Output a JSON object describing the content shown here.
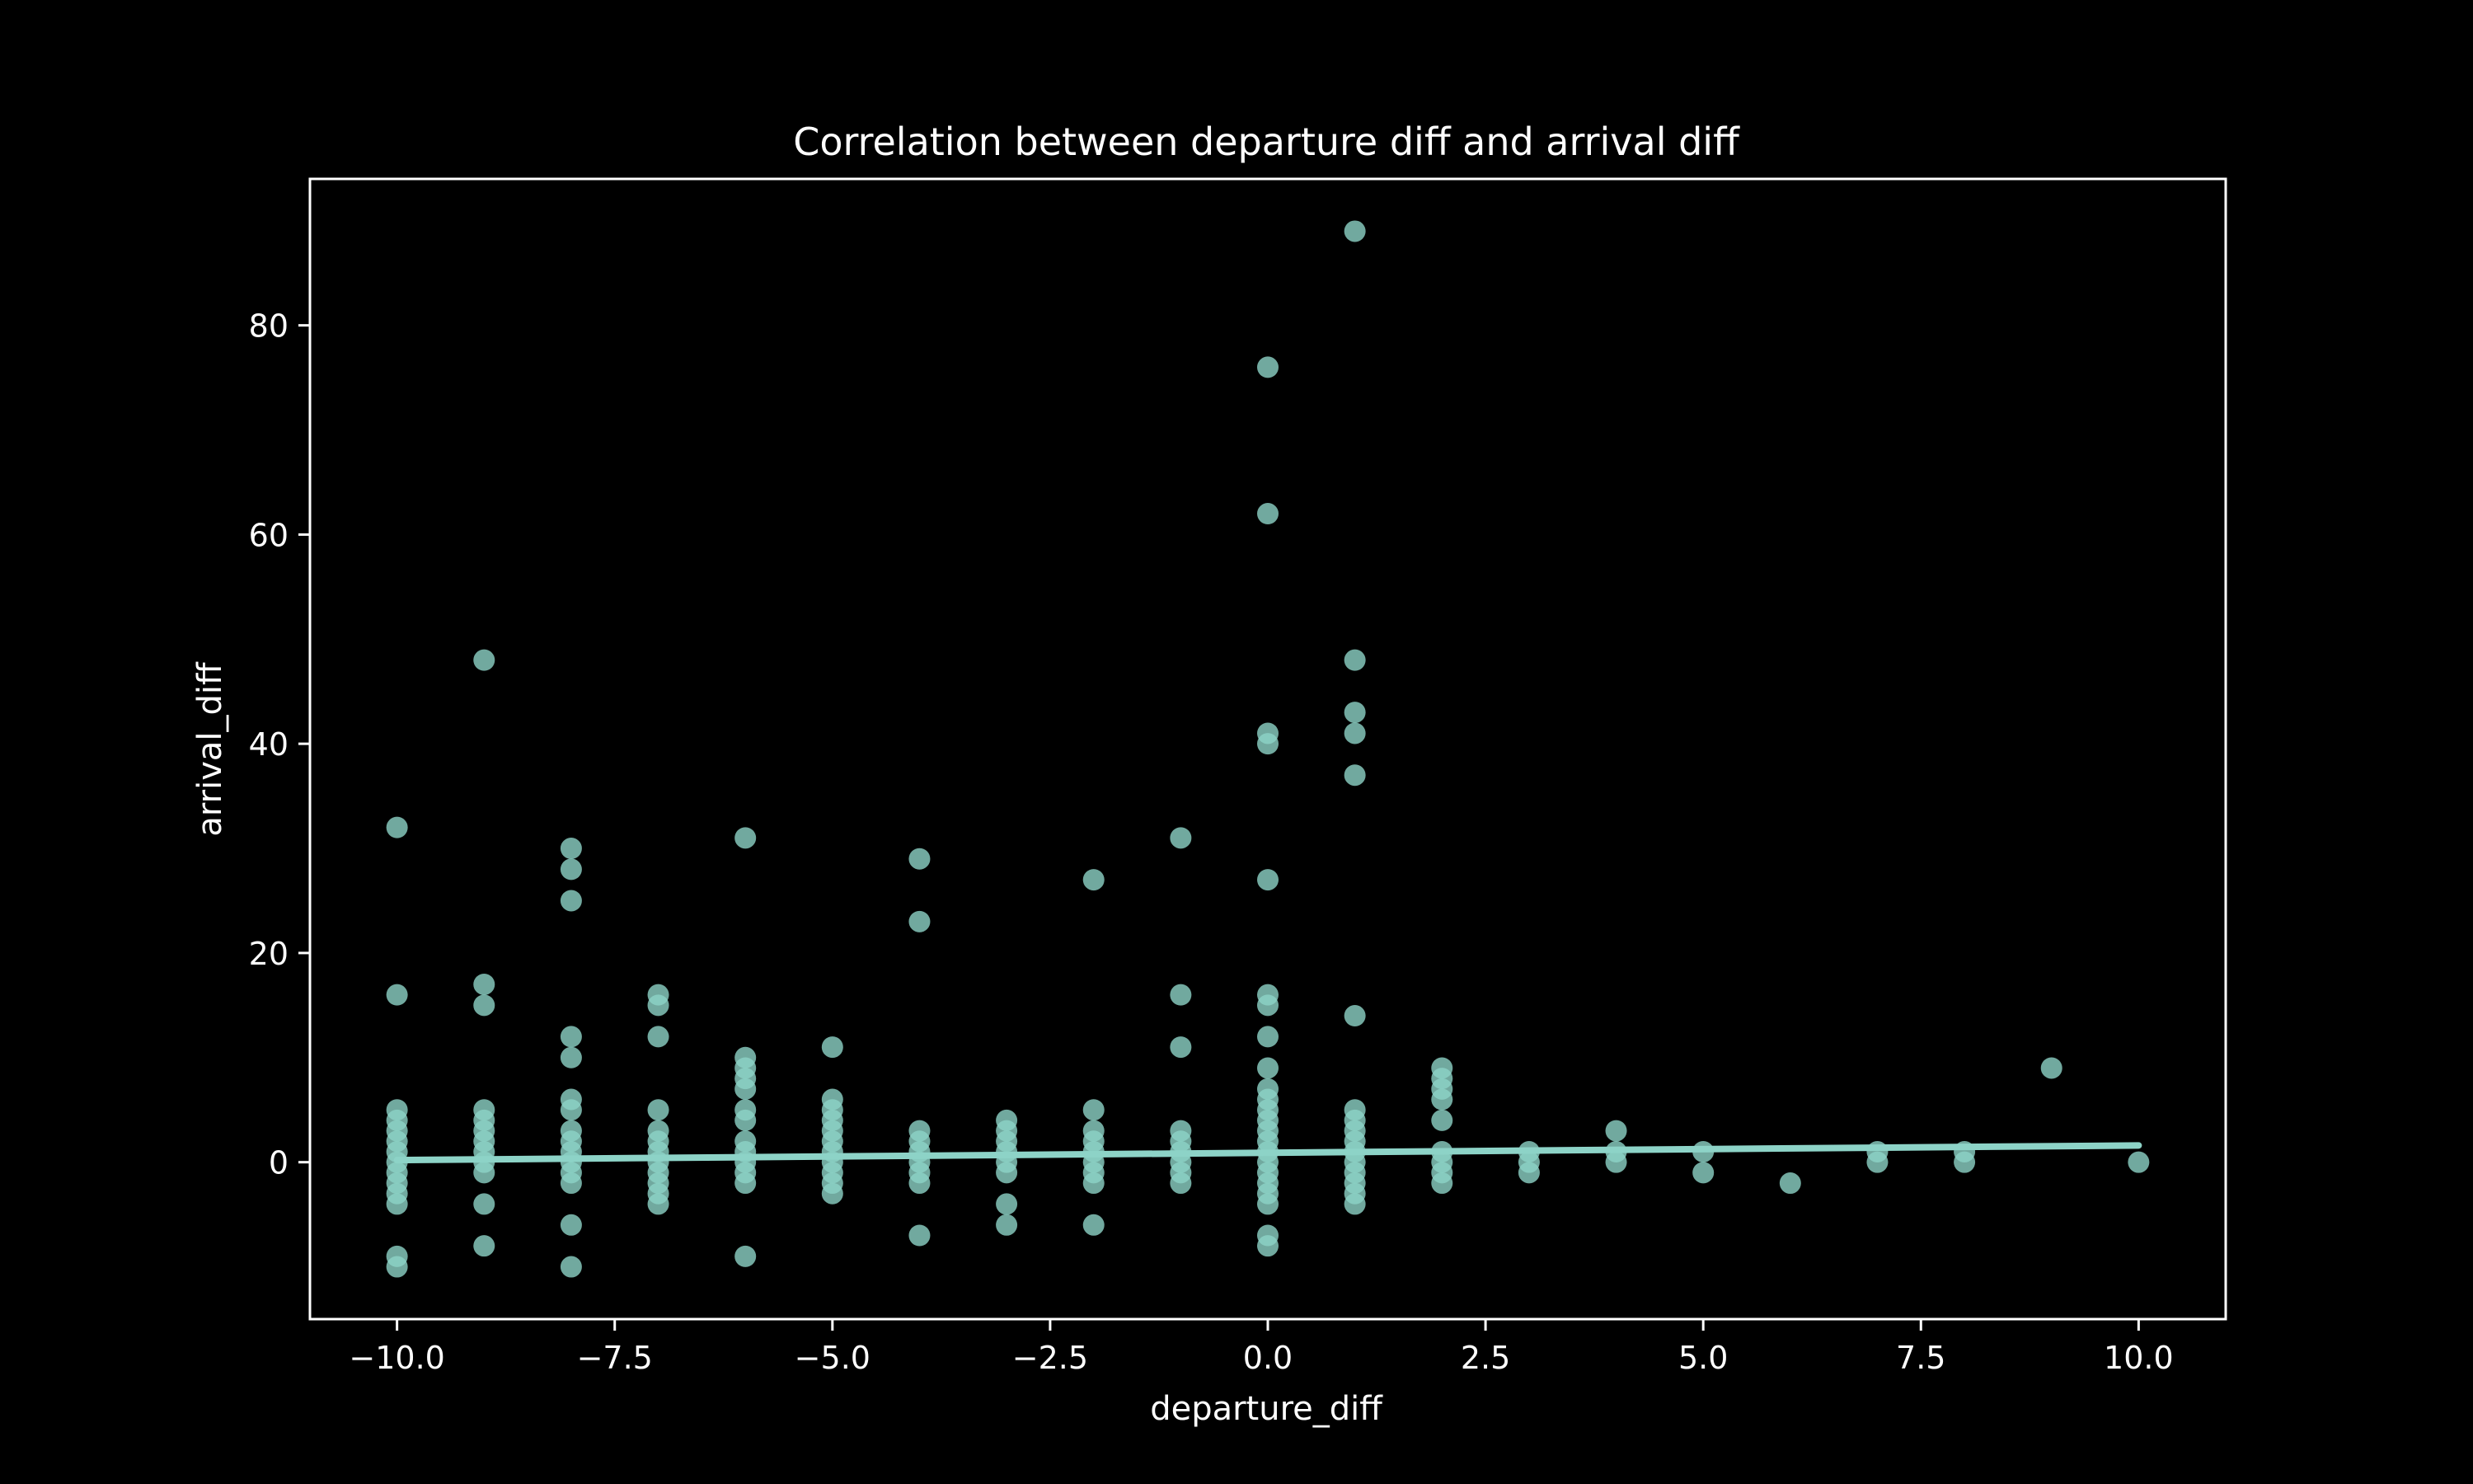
{
  "chart_data": {
    "type": "scatter",
    "title": "Correlation between departure diff and arrival diff",
    "xlabel": "departure_diff",
    "ylabel": "arrival_diff",
    "xlim": [
      -11,
      11
    ],
    "ylim": [
      -15,
      94
    ],
    "x_ticks": [
      -10.0,
      -7.5,
      -5.0,
      -2.5,
      0.0,
      2.5,
      5.0,
      7.5,
      10.0
    ],
    "x_tick_labels": [
      "−10.0",
      "−7.5",
      "−5.0",
      "−2.5",
      "0.0",
      "2.5",
      "5.0",
      "7.5",
      "10.0"
    ],
    "y_ticks": [
      0,
      20,
      40,
      60,
      80
    ],
    "y_tick_labels": [
      "0",
      "20",
      "40",
      "60",
      "80"
    ],
    "grid": false,
    "colors": {
      "background": "#000000",
      "axes": "#ffffff",
      "text": "#ffffff",
      "points": "#8dd3c7",
      "regression_line": "#8dd3c7"
    },
    "regression_line": {
      "x": [
        -10,
        10
      ],
      "y": [
        0.2,
        1.6
      ]
    },
    "points": [
      [
        -10,
        32
      ],
      [
        -10,
        16
      ],
      [
        -10,
        5
      ],
      [
        -10,
        4
      ],
      [
        -10,
        3
      ],
      [
        -10,
        2
      ],
      [
        -10,
        1
      ],
      [
        -10,
        0
      ],
      [
        -10,
        -1
      ],
      [
        -10,
        -2
      ],
      [
        -10,
        -3
      ],
      [
        -10,
        -4
      ],
      [
        -10,
        -9
      ],
      [
        -10,
        -10
      ],
      [
        -9,
        48
      ],
      [
        -9,
        17
      ],
      [
        -9,
        15
      ],
      [
        -9,
        5
      ],
      [
        -9,
        4
      ],
      [
        -9,
        3
      ],
      [
        -9,
        2
      ],
      [
        -9,
        1
      ],
      [
        -9,
        0
      ],
      [
        -9,
        -1
      ],
      [
        -9,
        -4
      ],
      [
        -9,
        -8
      ],
      [
        -8,
        30
      ],
      [
        -8,
        28
      ],
      [
        -8,
        25
      ],
      [
        -8,
        12
      ],
      [
        -8,
        10
      ],
      [
        -8,
        6
      ],
      [
        -8,
        5
      ],
      [
        -8,
        3
      ],
      [
        -8,
        2
      ],
      [
        -8,
        1
      ],
      [
        -8,
        0
      ],
      [
        -8,
        -1
      ],
      [
        -8,
        -2
      ],
      [
        -8,
        -6
      ],
      [
        -8,
        -10
      ],
      [
        -7,
        16
      ],
      [
        -7,
        15
      ],
      [
        -7,
        12
      ],
      [
        -7,
        5
      ],
      [
        -7,
        3
      ],
      [
        -7,
        2
      ],
      [
        -7,
        1
      ],
      [
        -7,
        0
      ],
      [
        -7,
        -1
      ],
      [
        -7,
        -2
      ],
      [
        -7,
        -3
      ],
      [
        -7,
        -4
      ],
      [
        -6,
        31
      ],
      [
        -6,
        10
      ],
      [
        -6,
        9
      ],
      [
        -6,
        8
      ],
      [
        -6,
        7
      ],
      [
        -6,
        5
      ],
      [
        -6,
        4
      ],
      [
        -6,
        2
      ],
      [
        -6,
        1
      ],
      [
        -6,
        0
      ],
      [
        -6,
        -1
      ],
      [
        -6,
        -2
      ],
      [
        -6,
        -9
      ],
      [
        -5,
        11
      ],
      [
        -5,
        6
      ],
      [
        -5,
        5
      ],
      [
        -5,
        4
      ],
      [
        -5,
        3
      ],
      [
        -5,
        2
      ],
      [
        -5,
        1
      ],
      [
        -5,
        0
      ],
      [
        -5,
        -1
      ],
      [
        -5,
        -2
      ],
      [
        -5,
        -3
      ],
      [
        -4,
        29
      ],
      [
        -4,
        23
      ],
      [
        -4,
        3
      ],
      [
        -4,
        2
      ],
      [
        -4,
        1
      ],
      [
        -4,
        0
      ],
      [
        -4,
        -1
      ],
      [
        -4,
        -2
      ],
      [
        -4,
        -7
      ],
      [
        -3,
        4
      ],
      [
        -3,
        3
      ],
      [
        -3,
        2
      ],
      [
        -3,
        1
      ],
      [
        -3,
        0
      ],
      [
        -3,
        -1
      ],
      [
        -3,
        -4
      ],
      [
        -3,
        -6
      ],
      [
        -2,
        27
      ],
      [
        -2,
        5
      ],
      [
        -2,
        3
      ],
      [
        -2,
        2
      ],
      [
        -2,
        1
      ],
      [
        -2,
        0
      ],
      [
        -2,
        -1
      ],
      [
        -2,
        -2
      ],
      [
        -2,
        -6
      ],
      [
        -1,
        31
      ],
      [
        -1,
        16
      ],
      [
        -1,
        11
      ],
      [
        -1,
        3
      ],
      [
        -1,
        2
      ],
      [
        -1,
        1
      ],
      [
        -1,
        0
      ],
      [
        -1,
        -1
      ],
      [
        -1,
        -2
      ],
      [
        0,
        76
      ],
      [
        0,
        62
      ],
      [
        0,
        41
      ],
      [
        0,
        40
      ],
      [
        0,
        27
      ],
      [
        0,
        16
      ],
      [
        0,
        15
      ],
      [
        0,
        12
      ],
      [
        0,
        9
      ],
      [
        0,
        7
      ],
      [
        0,
        6
      ],
      [
        0,
        5
      ],
      [
        0,
        4
      ],
      [
        0,
        3
      ],
      [
        0,
        2
      ],
      [
        0,
        1
      ],
      [
        0,
        0
      ],
      [
        0,
        -1
      ],
      [
        0,
        -2
      ],
      [
        0,
        -3
      ],
      [
        0,
        -4
      ],
      [
        0,
        -7
      ],
      [
        0,
        -8
      ],
      [
        1,
        89
      ],
      [
        1,
        48
      ],
      [
        1,
        43
      ],
      [
        1,
        41
      ],
      [
        1,
        37
      ],
      [
        1,
        14
      ],
      [
        1,
        5
      ],
      [
        1,
        4
      ],
      [
        1,
        3
      ],
      [
        1,
        2
      ],
      [
        1,
        1
      ],
      [
        1,
        0
      ],
      [
        1,
        -1
      ],
      [
        1,
        -2
      ],
      [
        1,
        -3
      ],
      [
        1,
        -4
      ],
      [
        2,
        9
      ],
      [
        2,
        8
      ],
      [
        2,
        7
      ],
      [
        2,
        6
      ],
      [
        2,
        4
      ],
      [
        2,
        1
      ],
      [
        2,
        0
      ],
      [
        2,
        -1
      ],
      [
        2,
        -2
      ],
      [
        3,
        1
      ],
      [
        3,
        0
      ],
      [
        3,
        -1
      ],
      [
        4,
        3
      ],
      [
        4,
        1
      ],
      [
        4,
        0
      ],
      [
        5,
        1
      ],
      [
        5,
        -1
      ],
      [
        6,
        -2
      ],
      [
        7,
        1
      ],
      [
        7,
        0
      ],
      [
        8,
        1
      ],
      [
        8,
        0
      ],
      [
        9,
        9
      ],
      [
        10,
        0
      ]
    ]
  }
}
